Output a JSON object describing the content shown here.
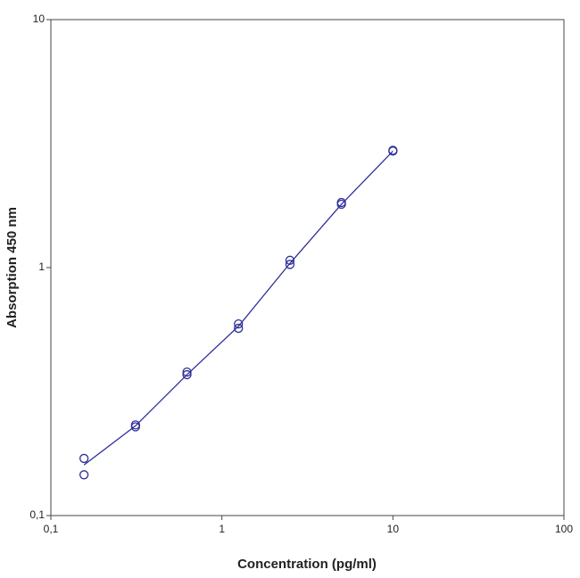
{
  "chart_data": {
    "type": "scatter",
    "xlabel": "Concentration (pg/ml)",
    "ylabel": "Absorption 450 nm",
    "xscale": "log",
    "yscale": "log",
    "xlim": [
      0.1,
      100
    ],
    "ylim": [
      0.1,
      10
    ],
    "xticks": [
      {
        "value": 0.1,
        "label": "0,1"
      },
      1,
      10,
      100
    ],
    "yticks": [
      {
        "value": 0.1,
        "label": "0,1"
      },
      1,
      10
    ],
    "grid": false,
    "series": [
      {
        "type": "scatter",
        "color": "#2e2e9a",
        "x": [
          0.15625,
          0.15625,
          0.3125,
          0.3125,
          0.625,
          0.625,
          1.25,
          1.25,
          2.5,
          2.5,
          5,
          5,
          10,
          10
        ],
        "values": [
          0.17,
          0.146,
          0.232,
          0.228,
          0.379,
          0.37,
          0.593,
          0.569,
          1.07,
          1.03,
          1.83,
          1.8,
          2.97,
          2.95
        ]
      },
      {
        "type": "line",
        "color": "#2e2e9a",
        "x": [
          0.15625,
          0.3125,
          0.625,
          1.25,
          2.5,
          5,
          10
        ],
        "values": [
          0.16,
          0.23,
          0.37,
          0.58,
          1.04,
          1.8,
          2.95
        ]
      }
    ]
  }
}
